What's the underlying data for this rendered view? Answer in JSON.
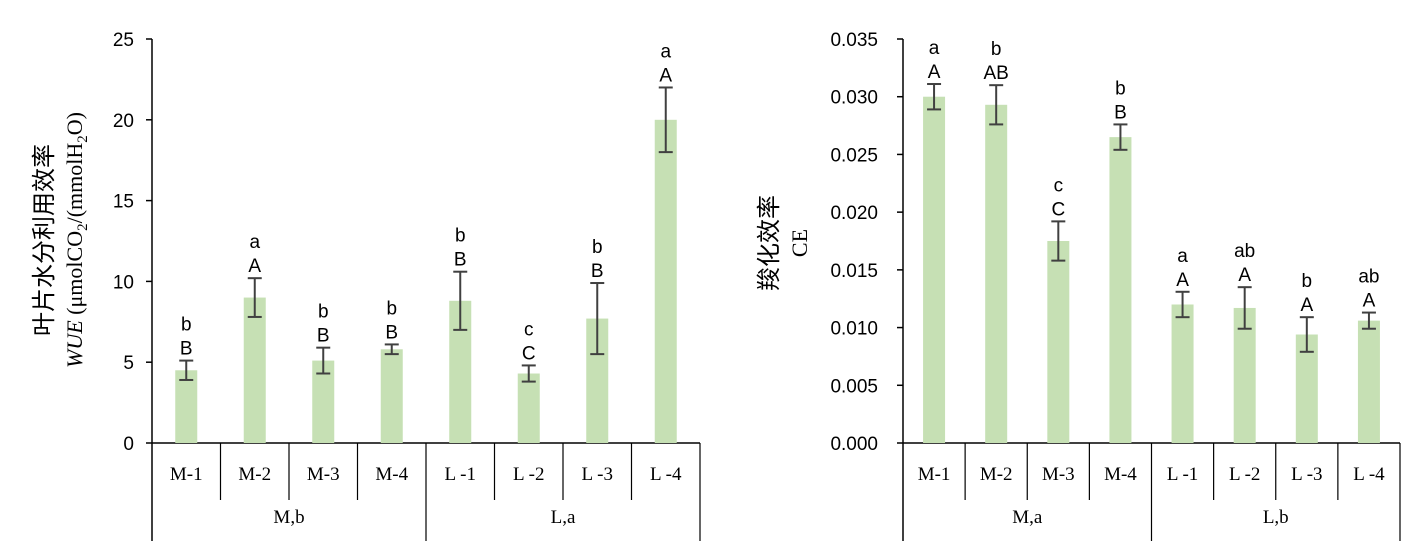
{
  "colors": {
    "bar": "#c6e0b4",
    "axis": "#000000",
    "error": "#404040"
  },
  "chart_data": [
    {
      "type": "bar",
      "title": "",
      "ylabel": "叶片水分利用效率",
      "ylabel_line2": "WUE (μmolCO2/(mmolH2O)",
      "ylabel_line2_parts": {
        "italic": "WUE",
        "a": " (μmolCO",
        "s1": "2",
        "b": "/(mmolH",
        "s2": "2",
        "c": "O)"
      },
      "ylim": [
        0,
        25
      ],
      "yticks": [
        0,
        5,
        10,
        15,
        20,
        25
      ],
      "ytick_labels": [
        "0",
        "5",
        "10",
        "15",
        "20",
        "25"
      ],
      "categories": [
        "M-1",
        "M-2",
        "M-3",
        "M-4",
        "L -1",
        "L -2",
        "L -3",
        "L -4"
      ],
      "values": [
        4.5,
        9.0,
        5.1,
        5.8,
        8.8,
        4.3,
        7.7,
        20.0
      ],
      "errors": [
        0.6,
        1.2,
        0.8,
        0.3,
        1.8,
        0.5,
        2.2,
        2.0
      ],
      "sig_lower": [
        "b",
        "a",
        "b",
        "b",
        "b",
        "c",
        "b",
        "a"
      ],
      "sig_upper": [
        "B",
        "A",
        "B",
        "B",
        "B",
        "C",
        "B",
        "A"
      ],
      "groups": [
        {
          "label": "M,b",
          "start": 0,
          "end": 3
        },
        {
          "label": "L,a",
          "start": 4,
          "end": 7
        }
      ],
      "grid": false
    },
    {
      "type": "bar",
      "title": "",
      "ylabel": "羧化效率",
      "ylabel_line2": "CE",
      "ylim": [
        0,
        0.035
      ],
      "yticks": [
        0,
        0.005,
        0.01,
        0.015,
        0.02,
        0.025,
        0.03,
        0.035
      ],
      "ytick_labels": [
        "0.000",
        "0.005",
        "0.010",
        "0.015",
        "0.020",
        "0.025",
        "0.030",
        "0.035"
      ],
      "categories": [
        "M-1",
        "M-2",
        "M-3",
        "M-4",
        "L -1",
        "L -2",
        "L -3",
        "L -4"
      ],
      "values": [
        0.03,
        0.0293,
        0.0175,
        0.0265,
        0.012,
        0.0117,
        0.0094,
        0.0106
      ],
      "errors": [
        0.0011,
        0.0017,
        0.0017,
        0.0011,
        0.0011,
        0.0018,
        0.0015,
        0.0007
      ],
      "sig_lower": [
        "a",
        "b",
        "c",
        "b",
        "a",
        "ab",
        "b",
        "ab"
      ],
      "sig_upper": [
        "A",
        "AB",
        "C",
        "B",
        "A",
        "A",
        "A",
        "A"
      ],
      "groups": [
        {
          "label": "M,a",
          "start": 0,
          "end": 3
        },
        {
          "label": "L,b",
          "start": 4,
          "end": 7
        }
      ],
      "grid": false
    }
  ]
}
